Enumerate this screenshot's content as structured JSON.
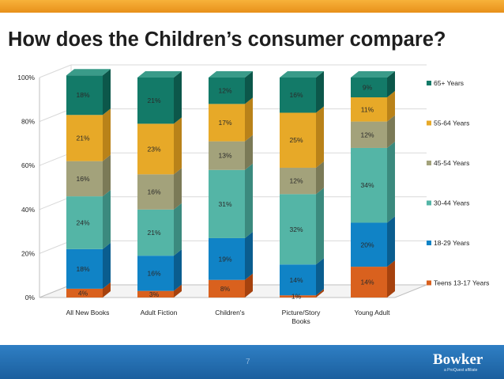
{
  "slide": {
    "title": "How does the Children’s consumer compare?",
    "page_number": "7",
    "logo": {
      "name": "Bowker",
      "tagline": "a ProQuest affiliate"
    }
  },
  "chart_data": {
    "type": "bar",
    "stacked": true,
    "percent": true,
    "three_d": true,
    "title": "",
    "xlabel": "",
    "ylabel": "",
    "ylim": [
      0,
      100
    ],
    "yticks": [
      "0%",
      "20%",
      "40%",
      "60%",
      "80%",
      "100%"
    ],
    "grid": true,
    "legend_position": "right",
    "categories": [
      "All New Books",
      "Adult Fiction",
      "Children's",
      "Picture/Story Books",
      "Young Adult"
    ],
    "series": [
      {
        "name": "Teens 13-17 Years",
        "values": [
          4,
          3,
          8,
          1,
          14
        ],
        "labels": [
          "4%",
          "3%",
          "8%",
          "1%",
          "14%"
        ],
        "color": "#d9611e",
        "side": "#a6420e",
        "top": "#e98a4c"
      },
      {
        "name": "18-29 Years",
        "values": [
          18,
          16,
          19,
          14,
          20
        ],
        "labels": [
          "18%",
          "16%",
          "19%",
          "14%",
          "20%"
        ],
        "color": "#1083c6",
        "side": "#0a5d8f",
        "top": "#46a5db"
      },
      {
        "name": "30-44 Years",
        "values": [
          24,
          21,
          31,
          32,
          34
        ],
        "labels": [
          "24%",
          "21%",
          "31%",
          "32%",
          "34%"
        ],
        "color": "#54b5a6",
        "side": "#3b8a7e",
        "top": "#7fcbbf"
      },
      {
        "name": "45-54 Years",
        "values": [
          16,
          16,
          13,
          12,
          12
        ],
        "labels": [
          "16%",
          "16%",
          "13%",
          "12%",
          "12%"
        ],
        "color": "#a3a27b",
        "side": "#7b7a57",
        "top": "#c0bf9c"
      },
      {
        "name": "55-64 Years",
        "values": [
          21,
          23,
          17,
          25,
          11
        ],
        "labels": [
          "21%",
          "23%",
          "17%",
          "25%",
          "11%"
        ],
        "color": "#e7a928",
        "side": "#b98219",
        "top": "#f0c35c"
      },
      {
        "name": "65+ Years",
        "values": [
          18,
          21,
          12,
          16,
          9
        ],
        "labels": [
          "18%",
          "21%",
          "12%",
          "16%",
          "9%"
        ],
        "color": "#137a68",
        "side": "#0c574a",
        "top": "#3a9b89"
      }
    ]
  }
}
